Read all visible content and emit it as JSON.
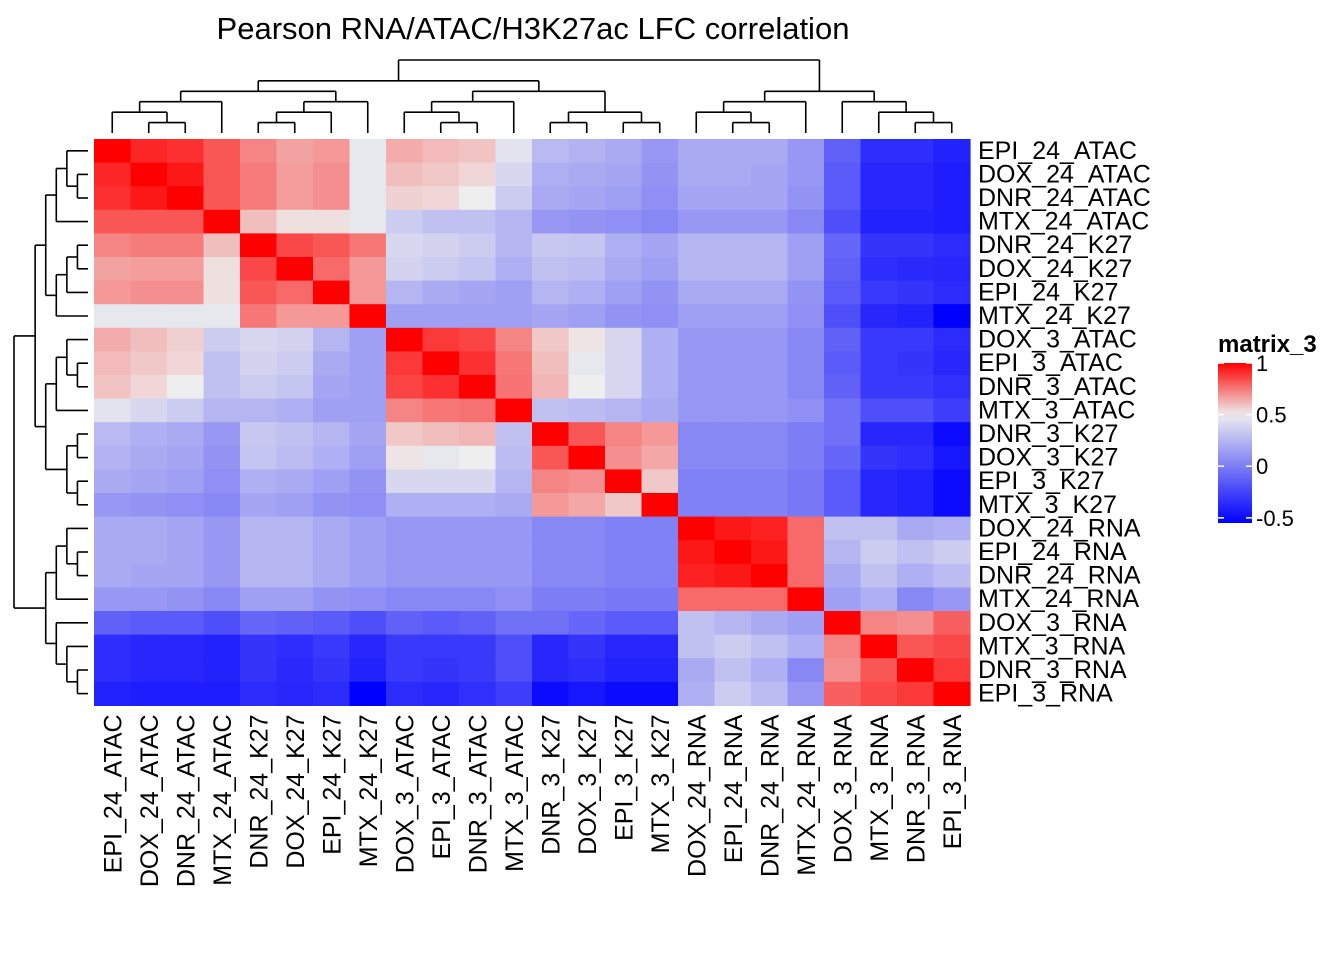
{
  "chart_data": {
    "type": "heatmap",
    "title": "Pearson RNA/ATAC/H3K27ac LFC correlation",
    "labels": [
      "EPI_24_ATAC",
      "DOX_24_ATAC",
      "DNR_24_ATAC",
      "MTX_24_ATAC",
      "DNR_24_K27",
      "DOX_24_K27",
      "EPI_24_K27",
      "MTX_24_K27",
      "DOX_3_ATAC",
      "EPI_3_ATAC",
      "DNR_3_ATAC",
      "MTX_3_ATAC",
      "DNR_3_K27",
      "DOX_3_K27",
      "EPI_3_K27",
      "MTX_3_K27",
      "DOX_24_RNA",
      "EPI_24_RNA",
      "DNR_24_RNA",
      "MTX_24_RNA",
      "DOX_3_RNA",
      "MTX_3_RNA",
      "DNR_3_RNA",
      "EPI_3_RNA"
    ],
    "matrix": [
      [
        1.0,
        0.92,
        0.9,
        0.82,
        0.72,
        0.66,
        0.68,
        0.47,
        0.64,
        0.61,
        0.59,
        0.45,
        0.27,
        0.24,
        0.2,
        0.12,
        0.2,
        0.2,
        0.2,
        0.12,
        -0.12,
        -0.35,
        -0.35,
        -0.4
      ],
      [
        0.92,
        1.0,
        0.95,
        0.82,
        0.74,
        0.67,
        0.7,
        0.47,
        0.6,
        0.58,
        0.55,
        0.4,
        0.22,
        0.2,
        0.18,
        0.1,
        0.2,
        0.2,
        0.18,
        0.12,
        -0.15,
        -0.38,
        -0.38,
        -0.42
      ],
      [
        0.9,
        0.95,
        1.0,
        0.82,
        0.74,
        0.67,
        0.7,
        0.47,
        0.56,
        0.55,
        0.5,
        0.35,
        0.2,
        0.18,
        0.15,
        0.08,
        0.18,
        0.18,
        0.18,
        0.1,
        -0.15,
        -0.38,
        -0.38,
        -0.42
      ],
      [
        0.82,
        0.82,
        0.82,
        1.0,
        0.6,
        0.53,
        0.53,
        0.47,
        0.35,
        0.3,
        0.3,
        0.25,
        0.12,
        0.1,
        0.08,
        0.05,
        0.12,
        0.12,
        0.12,
        0.05,
        -0.2,
        -0.4,
        -0.4,
        -0.42
      ],
      [
        0.72,
        0.74,
        0.74,
        0.6,
        1.0,
        0.85,
        0.82,
        0.75,
        0.4,
        0.38,
        0.35,
        0.25,
        0.33,
        0.32,
        0.22,
        0.18,
        0.25,
        0.25,
        0.25,
        0.15,
        -0.1,
        -0.32,
        -0.32,
        -0.36
      ],
      [
        0.66,
        0.67,
        0.67,
        0.53,
        0.85,
        1.0,
        0.78,
        0.68,
        0.38,
        0.35,
        0.32,
        0.22,
        0.3,
        0.28,
        0.2,
        0.15,
        0.25,
        0.25,
        0.25,
        0.15,
        -0.12,
        -0.35,
        -0.37,
        -0.38
      ],
      [
        0.68,
        0.7,
        0.7,
        0.53,
        0.82,
        0.78,
        1.0,
        0.68,
        0.25,
        0.2,
        0.18,
        0.15,
        0.25,
        0.22,
        0.15,
        0.1,
        0.2,
        0.2,
        0.2,
        0.1,
        -0.15,
        -0.3,
        -0.32,
        -0.36
      ],
      [
        0.47,
        0.47,
        0.47,
        0.47,
        0.75,
        0.68,
        0.68,
        1.0,
        0.15,
        0.15,
        0.15,
        0.15,
        0.18,
        0.15,
        0.1,
        0.08,
        0.15,
        0.15,
        0.15,
        0.08,
        -0.2,
        -0.38,
        -0.4,
        -0.55
      ],
      [
        0.64,
        0.6,
        0.56,
        0.35,
        0.4,
        0.38,
        0.25,
        0.15,
        1.0,
        0.88,
        0.86,
        0.72,
        0.58,
        0.52,
        0.4,
        0.22,
        0.12,
        0.12,
        0.12,
        0.05,
        -0.12,
        -0.3,
        -0.3,
        -0.36
      ],
      [
        0.61,
        0.58,
        0.55,
        0.3,
        0.38,
        0.35,
        0.2,
        0.15,
        0.88,
        1.0,
        0.9,
        0.75,
        0.6,
        0.47,
        0.4,
        0.22,
        0.12,
        0.12,
        0.12,
        0.05,
        -0.15,
        -0.3,
        -0.32,
        -0.38
      ],
      [
        0.59,
        0.55,
        0.5,
        0.3,
        0.35,
        0.32,
        0.18,
        0.15,
        0.86,
        0.9,
        1.0,
        0.76,
        0.62,
        0.5,
        0.4,
        0.22,
        0.12,
        0.12,
        0.12,
        0.05,
        -0.12,
        -0.3,
        -0.3,
        -0.34
      ],
      [
        0.45,
        0.4,
        0.35,
        0.25,
        0.25,
        0.22,
        0.15,
        0.15,
        0.72,
        0.75,
        0.76,
        1.0,
        0.3,
        0.28,
        0.25,
        0.2,
        0.12,
        0.12,
        0.12,
        0.08,
        -0.05,
        -0.2,
        -0.2,
        -0.28
      ],
      [
        0.27,
        0.22,
        0.2,
        0.12,
        0.33,
        0.3,
        0.25,
        0.18,
        0.58,
        0.6,
        0.62,
        0.3,
        1.0,
        0.82,
        0.72,
        0.68,
        0.05,
        0.05,
        0.05,
        0.0,
        -0.05,
        -0.38,
        -0.38,
        -0.5
      ],
      [
        0.24,
        0.2,
        0.18,
        0.1,
        0.32,
        0.28,
        0.22,
        0.15,
        0.52,
        0.47,
        0.5,
        0.28,
        0.82,
        1.0,
        0.7,
        0.65,
        0.05,
        0.05,
        0.05,
        0.0,
        -0.1,
        -0.32,
        -0.35,
        -0.45
      ],
      [
        0.2,
        0.18,
        0.15,
        0.08,
        0.22,
        0.2,
        0.15,
        0.1,
        0.4,
        0.4,
        0.4,
        0.25,
        0.72,
        0.7,
        1.0,
        0.58,
        0.02,
        0.02,
        0.02,
        -0.02,
        -0.15,
        -0.38,
        -0.4,
        -0.5
      ],
      [
        0.12,
        0.1,
        0.08,
        0.05,
        0.18,
        0.15,
        0.1,
        0.08,
        0.22,
        0.22,
        0.22,
        0.2,
        0.68,
        0.65,
        0.58,
        1.0,
        0.02,
        0.02,
        0.02,
        -0.02,
        -0.15,
        -0.38,
        -0.4,
        -0.5
      ],
      [
        0.2,
        0.2,
        0.18,
        0.12,
        0.25,
        0.25,
        0.2,
        0.15,
        0.12,
        0.12,
        0.12,
        0.12,
        0.05,
        0.05,
        0.02,
        0.02,
        1.0,
        0.95,
        0.93,
        0.78,
        0.3,
        0.3,
        0.2,
        0.22
      ],
      [
        0.2,
        0.2,
        0.18,
        0.12,
        0.25,
        0.25,
        0.2,
        0.15,
        0.12,
        0.12,
        0.12,
        0.12,
        0.05,
        0.05,
        0.02,
        0.02,
        0.95,
        1.0,
        0.95,
        0.78,
        0.25,
        0.35,
        0.3,
        0.35
      ],
      [
        0.2,
        0.18,
        0.18,
        0.12,
        0.25,
        0.25,
        0.2,
        0.15,
        0.12,
        0.12,
        0.12,
        0.12,
        0.05,
        0.05,
        0.02,
        0.02,
        0.93,
        0.95,
        1.0,
        0.78,
        0.2,
        0.3,
        0.22,
        0.28
      ],
      [
        0.12,
        0.12,
        0.1,
        0.05,
        0.15,
        0.15,
        0.1,
        0.08,
        0.05,
        0.05,
        0.05,
        0.08,
        0.0,
        0.0,
        -0.02,
        -0.02,
        0.78,
        0.78,
        0.78,
        1.0,
        0.15,
        0.22,
        0.05,
        0.12
      ],
      [
        -0.12,
        -0.15,
        -0.15,
        -0.2,
        -0.1,
        -0.12,
        -0.15,
        -0.2,
        -0.12,
        -0.15,
        -0.12,
        -0.05,
        -0.05,
        -0.1,
        -0.15,
        -0.15,
        0.3,
        0.25,
        0.2,
        0.15,
        1.0,
        0.72,
        0.7,
        0.8
      ],
      [
        -0.35,
        -0.38,
        -0.38,
        -0.4,
        -0.32,
        -0.35,
        -0.3,
        -0.38,
        -0.3,
        -0.3,
        -0.3,
        -0.2,
        -0.38,
        -0.32,
        -0.38,
        -0.38,
        0.3,
        0.35,
        0.3,
        0.22,
        0.72,
        1.0,
        0.82,
        0.85
      ],
      [
        -0.35,
        -0.38,
        -0.38,
        -0.4,
        -0.32,
        -0.37,
        -0.32,
        -0.4,
        -0.3,
        -0.32,
        -0.3,
        -0.2,
        -0.38,
        -0.35,
        -0.4,
        -0.4,
        0.2,
        0.3,
        0.22,
        0.05,
        0.7,
        0.82,
        1.0,
        0.88
      ],
      [
        -0.4,
        -0.42,
        -0.42,
        -0.42,
        -0.36,
        -0.38,
        -0.36,
        -0.55,
        -0.36,
        -0.38,
        -0.34,
        -0.28,
        -0.5,
        -0.45,
        -0.5,
        -0.5,
        0.22,
        0.35,
        0.28,
        0.12,
        0.8,
        0.85,
        0.88,
        1.0
      ]
    ],
    "legend": {
      "title": "matrix_3",
      "ticks": [
        1,
        0.5,
        0,
        -0.5
      ],
      "tick_labels": [
        "1",
        "0.5",
        "0",
        "-0.5"
      ],
      "colors": {
        "low": "#0000FF",
        "mid": "#EEEEEE",
        "high": "#FF0000"
      },
      "breaks": [
        -0.55,
        0.5,
        1.0
      ]
    },
    "dendrogram": "hierarchical clustering on rows and columns"
  }
}
